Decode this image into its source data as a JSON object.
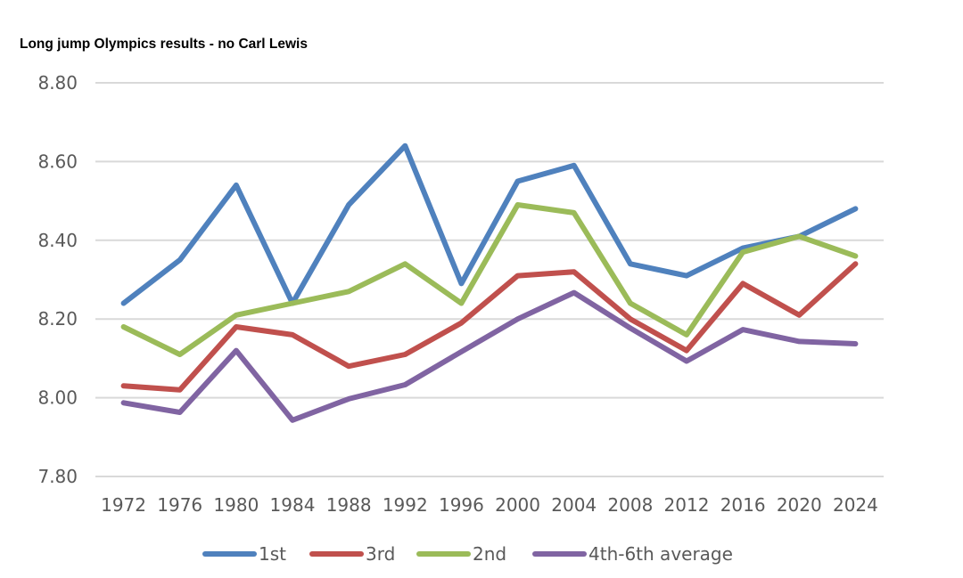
{
  "chart_data": {
    "type": "line",
    "title": "Long jump Olympics results - no Carl Lewis",
    "xlabel": "",
    "ylabel": "",
    "ylim": [
      7.8,
      8.8
    ],
    "yticks": [
      "7.80",
      "8.00",
      "8.20",
      "8.40",
      "8.60",
      "8.80"
    ],
    "ytick_values": [
      7.8,
      8.0,
      8.2,
      8.4,
      8.6,
      8.8
    ],
    "categories": [
      "1972",
      "1976",
      "1980",
      "1984",
      "1988",
      "1992",
      "1996",
      "2000",
      "2004",
      "2008",
      "2012",
      "2016",
      "2020",
      "2024"
    ],
    "grid": true,
    "legend_position": "bottom",
    "series": [
      {
        "name": "1st",
        "color": "#4F81BD",
        "values": [
          8.24,
          8.35,
          8.54,
          8.24,
          8.49,
          8.64,
          8.29,
          8.55,
          8.59,
          8.34,
          8.31,
          8.38,
          8.41,
          8.48
        ]
      },
      {
        "name": "3rd",
        "color": "#C0504D",
        "values": [
          8.03,
          8.02,
          8.18,
          8.16,
          8.08,
          8.11,
          8.19,
          8.31,
          8.32,
          8.2,
          8.12,
          8.29,
          8.21,
          8.34
        ]
      },
      {
        "name": "2nd",
        "color": "#9BBB59",
        "values": [
          8.18,
          8.11,
          8.21,
          8.24,
          8.27,
          8.34,
          8.24,
          8.49,
          8.47,
          8.24,
          8.16,
          8.37,
          8.41,
          8.36
        ]
      },
      {
        "name": "4th-6th average",
        "color": "#8064A2",
        "values": [
          7.987,
          7.963,
          8.12,
          7.943,
          7.997,
          8.033,
          8.117,
          8.2,
          8.267,
          8.177,
          8.093,
          8.173,
          8.143,
          8.137
        ]
      }
    ]
  }
}
